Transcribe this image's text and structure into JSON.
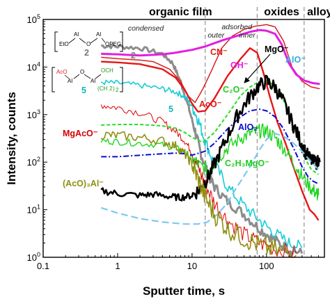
{
  "chart_data": {
    "type": "line",
    "xscale": "log",
    "yscale": "log",
    "xlim": [
      0.1,
      600
    ],
    "ylim": [
      1,
      100000
    ],
    "xlabel": "Sputter time, s",
    "ylabel": "Intensity, counts",
    "x_ticks": [
      {
        "v": 0.1,
        "label": "0.1"
      },
      {
        "v": 1,
        "label": "1"
      },
      {
        "v": 10,
        "label": "10"
      },
      {
        "v": 100,
        "label": "100"
      }
    ],
    "y_ticks": [
      {
        "v": 1,
        "base": "10",
        "exp": "0"
      },
      {
        "v": 10,
        "base": "10",
        "exp": "1"
      },
      {
        "v": 100,
        "base": "10",
        "exp": "2"
      },
      {
        "v": 1000,
        "base": "10",
        "exp": "3"
      },
      {
        "v": 10000,
        "base": "10",
        "exp": "4"
      },
      {
        "v": 100000,
        "base": "10",
        "exp": "5"
      }
    ],
    "region_boundaries": [
      15,
      75,
      320
    ],
    "regions": [
      {
        "label": "organic film",
        "x_center": 7
      },
      {
        "label": "oxides",
        "x_center": 160
      },
      {
        "label": "alloy",
        "x_center": 520
      }
    ],
    "subregions": [
      {
        "label": "condensed",
        "x_center": 2.4
      },
      {
        "label": "adsorbed",
        "x_center": 40
      },
      {
        "label": "outer",
        "x_center": 21
      },
      {
        "label": "inner",
        "x_center": 55
      }
    ],
    "structures": [
      {
        "label": "2",
        "color": "#777777"
      },
      {
        "label": "5",
        "color": "#10b5b5"
      }
    ],
    "series": [
      {
        "name": "2",
        "color": "#8c8c8c",
        "width": 3,
        "dash": "",
        "noise": 0.05,
        "points": [
          [
            0.6,
            28000
          ],
          [
            1,
            27000
          ],
          [
            2,
            25000
          ],
          [
            4,
            19000
          ],
          [
            5.5,
            12000
          ],
          [
            7,
            5000
          ],
          [
            9,
            1400
          ],
          [
            11,
            450
          ],
          [
            13,
            160
          ],
          [
            16,
            60
          ],
          [
            20,
            30
          ],
          [
            30,
            15
          ],
          [
            50,
            8
          ],
          [
            80,
            4
          ],
          [
            120,
            2.5
          ],
          [
            180,
            1.6
          ],
          [
            300,
            1.2
          ]
        ]
      },
      {
        "name": "5",
        "color": "#16cdd6",
        "width": 1.6,
        "dash": "",
        "noise": 0.06,
        "points": [
          [
            0.6,
            4800
          ],
          [
            1,
            4600
          ],
          [
            2,
            4100
          ],
          [
            4,
            3500
          ],
          [
            6,
            3000
          ],
          [
            8,
            2400
          ],
          [
            10,
            1500
          ],
          [
            12,
            800
          ],
          [
            15,
            280
          ],
          [
            20,
            90
          ],
          [
            30,
            30
          ],
          [
            50,
            12
          ],
          [
            80,
            6
          ],
          [
            120,
            3.5
          ],
          [
            200,
            2
          ],
          [
            300,
            1.6
          ]
        ]
      },
      {
        "name": "CN⁻",
        "color": "#d62020",
        "width": 1.5,
        "dash": "",
        "noise": 0,
        "points": [
          [
            0.6,
            16000
          ],
          [
            1,
            15000
          ],
          [
            2,
            14000
          ],
          [
            3,
            13000
          ],
          [
            5,
            9000
          ],
          [
            7,
            5000
          ],
          [
            9,
            2400
          ],
          [
            11,
            1800
          ],
          [
            14,
            3500
          ],
          [
            18,
            8000
          ],
          [
            25,
            25000
          ],
          [
            35,
            45000
          ],
          [
            50,
            62000
          ],
          [
            70,
            72000
          ],
          [
            100,
            78000
          ],
          [
            130,
            70000
          ],
          [
            170,
            35000
          ],
          [
            220,
            10000
          ],
          [
            300,
            5000
          ],
          [
            400,
            3800
          ],
          [
            520,
            3500
          ]
        ]
      },
      {
        "name": "OH⁻",
        "color": "#e21ee2",
        "width": 3,
        "dash": "",
        "noise": 0,
        "points": [
          [
            0.6,
            19000
          ],
          [
            1,
            18500
          ],
          [
            2,
            17500
          ],
          [
            4,
            18500
          ],
          [
            6,
            20000
          ],
          [
            10,
            23000
          ],
          [
            15,
            27000
          ],
          [
            25,
            36000
          ],
          [
            40,
            45000
          ],
          [
            60,
            55000
          ],
          [
            80,
            60000
          ],
          [
            100,
            58000
          ],
          [
            130,
            50000
          ],
          [
            160,
            30000
          ],
          [
            200,
            12000
          ],
          [
            250,
            7000
          ],
          [
            320,
            5200
          ],
          [
            420,
            4600
          ],
          [
            520,
            4400
          ]
        ]
      },
      {
        "name": "AcO⁻",
        "color": "#e81515",
        "width": 2.4,
        "dash": "",
        "noise": 0,
        "points": [
          [
            0.6,
            13000
          ],
          [
            1,
            12500
          ],
          [
            2,
            11500
          ],
          [
            4,
            9000
          ],
          [
            6,
            6000
          ],
          [
            8,
            3300
          ],
          [
            10,
            1700
          ],
          [
            12,
            1150
          ],
          [
            15,
            1200
          ],
          [
            20,
            2200
          ],
          [
            30,
            6500
          ],
          [
            45,
            15000
          ],
          [
            60,
            25000
          ],
          [
            75,
            20000
          ],
          [
            90,
            8000
          ],
          [
            110,
            2500
          ],
          [
            140,
            700
          ],
          [
            180,
            250
          ],
          [
            230,
            80
          ],
          [
            300,
            25
          ],
          [
            380,
            10
          ],
          [
            440,
            8
          ],
          [
            500,
            6
          ]
        ]
      },
      {
        "name": "MgAcO⁻",
        "color": "#e00000",
        "width": 1,
        "dash": "",
        "noise": 0.08,
        "points": [
          [
            0.6,
            1600
          ],
          [
            1,
            1400
          ],
          [
            2,
            1100
          ],
          [
            4,
            700
          ],
          [
            6,
            450
          ],
          [
            8,
            280
          ],
          [
            10,
            160
          ],
          [
            12,
            80
          ],
          [
            15,
            35
          ],
          [
            20,
            14
          ],
          [
            30,
            6
          ],
          [
            50,
            3
          ],
          [
            80,
            2
          ],
          [
            130,
            1.5
          ],
          [
            250,
            1.2
          ]
        ]
      },
      {
        "name": "C₂O⁻",
        "color": "#22e022",
        "width": 2,
        "dash": "5,3",
        "noise": 0,
        "points": [
          [
            0.6,
            600
          ],
          [
            1,
            620
          ],
          [
            2,
            620
          ],
          [
            4,
            580
          ],
          [
            6,
            520
          ],
          [
            8,
            420
          ],
          [
            10,
            330
          ],
          [
            14,
            260
          ],
          [
            20,
            420
          ],
          [
            30,
            1000
          ],
          [
            45,
            2500
          ],
          [
            60,
            3800
          ],
          [
            80,
            5000
          ],
          [
            100,
            5200
          ],
          [
            130,
            4000
          ],
          [
            170,
            2000
          ],
          [
            220,
            700
          ],
          [
            280,
            260
          ],
          [
            340,
            110
          ],
          [
            400,
            70
          ],
          [
            460,
            60
          ],
          [
            500,
            55
          ]
        ]
      },
      {
        "name": "C₂H₃MgO⁻",
        "color": "#21d421",
        "width": 1.4,
        "dash": "",
        "noise": 0.07,
        "points": [
          [
            0.6,
            280
          ],
          [
            1,
            270
          ],
          [
            2,
            250
          ],
          [
            4,
            230
          ],
          [
            6,
            200
          ],
          [
            8,
            160
          ],
          [
            10,
            120
          ],
          [
            13,
            80
          ],
          [
            17,
            70
          ],
          [
            22,
            120
          ],
          [
            30,
            200
          ],
          [
            45,
            320
          ],
          [
            60,
            400
          ],
          [
            80,
            450
          ],
          [
            100,
            450
          ],
          [
            130,
            330
          ],
          [
            170,
            200
          ],
          [
            230,
            100
          ],
          [
            300,
            50
          ],
          [
            400,
            28
          ],
          [
            470,
            22
          ],
          [
            500,
            20
          ]
        ]
      },
      {
        "name": "AlO₂",
        "color": "#0a0ad0",
        "width": 2,
        "dash": "8,3,2,3",
        "noise": 0,
        "points": [
          [
            0.6,
            130
          ],
          [
            1,
            130
          ],
          [
            2,
            140
          ],
          [
            4,
            150
          ],
          [
            6,
            155
          ],
          [
            8,
            150
          ],
          [
            10,
            140
          ],
          [
            15,
            170
          ],
          [
            20,
            250
          ],
          [
            30,
            500
          ],
          [
            45,
            900
          ],
          [
            60,
            1200
          ],
          [
            80,
            1300
          ],
          [
            100,
            1200
          ],
          [
            130,
            900
          ],
          [
            170,
            500
          ],
          [
            230,
            200
          ],
          [
            300,
            80
          ],
          [
            360,
            50
          ],
          [
            420,
            40
          ],
          [
            500,
            35
          ]
        ]
      },
      {
        "name": "MgO⁻",
        "color": "#000000",
        "width": 2.6,
        "dash": "",
        "noise": 0.07,
        "points": [
          [
            0.6,
            25
          ],
          [
            1,
            22
          ],
          [
            2,
            20
          ],
          [
            3,
            21
          ],
          [
            5,
            19
          ],
          [
            7,
            18
          ],
          [
            10,
            20
          ],
          [
            13,
            28
          ],
          [
            16,
            45
          ],
          [
            20,
            90
          ],
          [
            28,
            280
          ],
          [
            40,
            900
          ],
          [
            55,
            2000
          ],
          [
            75,
            3800
          ],
          [
            100,
            5000
          ],
          [
            130,
            3800
          ],
          [
            170,
            1800
          ],
          [
            220,
            700
          ],
          [
            280,
            300
          ],
          [
            340,
            150
          ],
          [
            420,
            100
          ],
          [
            520,
            100
          ]
        ]
      },
      {
        "name": "AlO⁻",
        "color": "#7ec8f0",
        "width": 2.2,
        "dash": "10,5",
        "noise": 0,
        "points": [
          [
            0.6,
            11
          ],
          [
            1,
            8.5
          ],
          [
            2,
            6.5
          ],
          [
            4,
            5.5
          ],
          [
            8,
            5
          ],
          [
            12,
            5
          ],
          [
            16,
            5.5
          ],
          [
            22,
            8
          ],
          [
            30,
            14
          ],
          [
            40,
            30
          ],
          [
            60,
            80
          ],
          [
            80,
            180
          ],
          [
            100,
            300
          ],
          [
            130,
            400
          ],
          [
            170,
            350
          ],
          [
            230,
            250
          ],
          [
            300,
            170
          ],
          [
            380,
            110
          ],
          [
            460,
            80
          ],
          [
            500,
            70
          ]
        ]
      },
      {
        "name": "(AcO)₃Al⁻",
        "color": "#8f8f10",
        "width": 1.6,
        "dash": "",
        "noise": 0.1,
        "points": [
          [
            0.6,
            380
          ],
          [
            1,
            360
          ],
          [
            2,
            330
          ],
          [
            4,
            280
          ],
          [
            6,
            220
          ],
          [
            8,
            150
          ],
          [
            10,
            90
          ],
          [
            12,
            45
          ],
          [
            15,
            18
          ],
          [
            20,
            8
          ],
          [
            30,
            4
          ],
          [
            50,
            2.5
          ],
          [
            80,
            1.8
          ],
          [
            130,
            1.4
          ],
          [
            250,
            1.1
          ]
        ]
      }
    ],
    "labels": [
      {
        "text": "2",
        "color": "#777777"
      },
      {
        "text": "5",
        "color": "#10b5b5"
      },
      {
        "text": "CN⁻",
        "color": "#d62020"
      },
      {
        "text": "OH⁻",
        "color": "#e21ee2"
      },
      {
        "text": "AcO⁻",
        "color": "#e81515"
      },
      {
        "text": "MgAcO⁻",
        "color": "#d40000"
      },
      {
        "text": "C₂O⁻",
        "color": "#1fcc1f"
      },
      {
        "text": "C₂H₃MgO⁻",
        "color": "#1fcc1f"
      },
      {
        "text": "AlO₂",
        "color": "#0a0ad0"
      },
      {
        "text": "MgO⁻",
        "color": "#000000"
      },
      {
        "text": "AlO⁻",
        "color": "#3aa9e0"
      },
      {
        "text": "(AcO)₃Al⁻",
        "color": "#8f8f10"
      }
    ]
  }
}
